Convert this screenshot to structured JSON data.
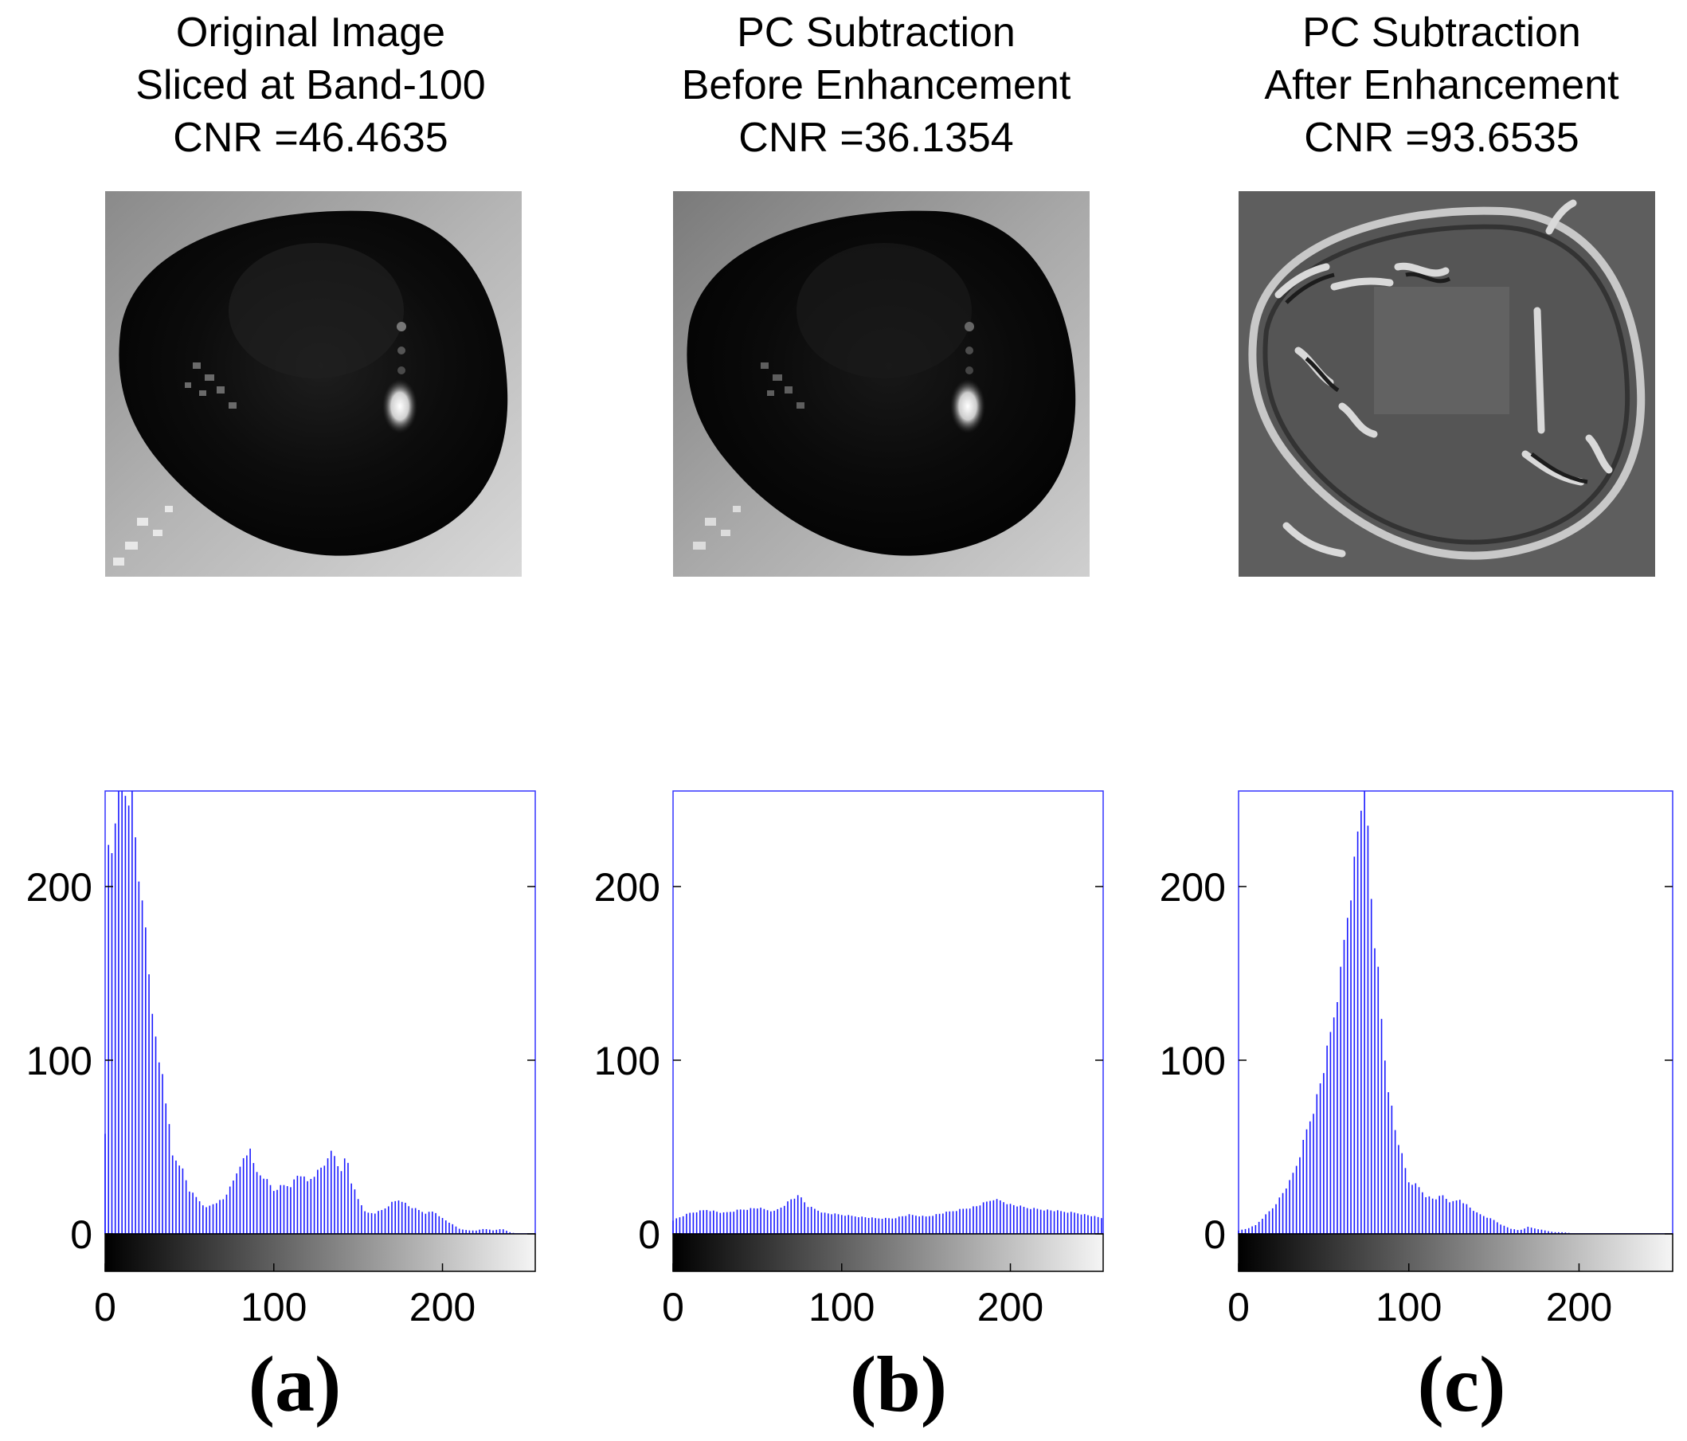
{
  "figure": {
    "panels": [
      {
        "id": "a",
        "title_lines": [
          "Original Image",
          "Sliced at Band-100",
          "CNR =46.4635"
        ],
        "label": "(a)"
      },
      {
        "id": "b",
        "title_lines": [
          "PC Subtraction",
          "Before Enhancement",
          "CNR =36.1354"
        ],
        "label": "(b)"
      },
      {
        "id": "c",
        "title_lines": [
          "PC Subtraction",
          "After Enhancement",
          "CNR =93.6535"
        ],
        "label": "(c)"
      }
    ]
  },
  "colors": {
    "bar": "#1a1aff",
    "axis": "#000000",
    "frame": "#3333ff"
  },
  "chart_data": [
    {
      "type": "bar",
      "title": "Original Image Sliced at Band-100 CNR =46.4635",
      "xlabel": "",
      "ylabel": "",
      "xlim": [
        0,
        255
      ],
      "ylim": [
        0,
        255
      ],
      "xticks": [
        0,
        100,
        200
      ],
      "yticks": [
        0,
        100,
        200
      ],
      "anchors": [
        [
          0,
          60
        ],
        [
          1,
          240
        ],
        [
          3,
          200
        ],
        [
          5,
          240
        ],
        [
          7,
          245
        ],
        [
          9,
          255
        ],
        [
          11,
          255
        ],
        [
          13,
          255
        ],
        [
          15,
          255
        ],
        [
          17,
          245
        ],
        [
          19,
          210
        ],
        [
          22,
          200
        ],
        [
          25,
          160
        ],
        [
          28,
          130
        ],
        [
          31,
          100
        ],
        [
          34,
          93
        ],
        [
          37,
          70
        ],
        [
          40,
          45
        ],
        [
          45,
          40
        ],
        [
          50,
          25
        ],
        [
          55,
          20
        ],
        [
          60,
          15
        ],
        [
          65,
          18
        ],
        [
          70,
          20
        ],
        [
          75,
          28
        ],
        [
          80,
          40
        ],
        [
          84,
          45
        ],
        [
          86,
          50
        ],
        [
          90,
          35
        ],
        [
          95,
          32
        ],
        [
          100,
          25
        ],
        [
          105,
          28
        ],
        [
          110,
          28
        ],
        [
          115,
          35
        ],
        [
          120,
          30
        ],
        [
          125,
          35
        ],
        [
          130,
          40
        ],
        [
          133,
          48
        ],
        [
          136,
          45
        ],
        [
          140,
          35
        ],
        [
          143,
          47
        ],
        [
          146,
          30
        ],
        [
          150,
          20
        ],
        [
          155,
          12
        ],
        [
          160,
          12
        ],
        [
          165,
          14
        ],
        [
          170,
          18
        ],
        [
          175,
          20
        ],
        [
          180,
          16
        ],
        [
          185,
          14
        ],
        [
          190,
          12
        ],
        [
          195,
          13
        ],
        [
          200,
          9
        ],
        [
          205,
          6
        ],
        [
          210,
          3
        ],
        [
          215,
          2
        ],
        [
          220,
          2
        ],
        [
          225,
          3
        ],
        [
          230,
          2
        ],
        [
          235,
          3
        ],
        [
          240,
          1
        ],
        [
          245,
          0
        ],
        [
          250,
          0
        ],
        [
          255,
          0
        ]
      ]
    },
    {
      "type": "bar",
      "title": "PC Subtraction Before Enhancement CNR =36.1354",
      "xlabel": "",
      "ylabel": "",
      "xlim": [
        0,
        255
      ],
      "ylim": [
        0,
        255
      ],
      "xticks": [
        0,
        100,
        200
      ],
      "yticks": [
        0,
        100,
        200
      ],
      "anchors": [
        [
          0,
          8
        ],
        [
          10,
          12
        ],
        [
          20,
          14
        ],
        [
          30,
          12
        ],
        [
          40,
          14
        ],
        [
          50,
          15
        ],
        [
          60,
          13
        ],
        [
          65,
          16
        ],
        [
          70,
          20
        ],
        [
          75,
          22
        ],
        [
          80,
          16
        ],
        [
          90,
          12
        ],
        [
          100,
          11
        ],
        [
          110,
          10
        ],
        [
          120,
          9
        ],
        [
          130,
          9
        ],
        [
          140,
          11
        ],
        [
          150,
          10
        ],
        [
          160,
          12
        ],
        [
          170,
          14
        ],
        [
          180,
          16
        ],
        [
          185,
          18
        ],
        [
          190,
          20
        ],
        [
          195,
          19
        ],
        [
          200,
          17
        ],
        [
          210,
          15
        ],
        [
          220,
          14
        ],
        [
          230,
          13
        ],
        [
          240,
          12
        ],
        [
          250,
          10
        ],
        [
          255,
          9
        ]
      ]
    },
    {
      "type": "bar",
      "title": "PC Subtraction After Enhancement CNR =93.6535",
      "xlabel": "",
      "ylabel": "",
      "xlim": [
        0,
        255
      ],
      "ylim": [
        0,
        255
      ],
      "xticks": [
        0,
        100,
        200
      ],
      "yticks": [
        0,
        100,
        200
      ],
      "anchors": [
        [
          0,
          2
        ],
        [
          5,
          3
        ],
        [
          10,
          5
        ],
        [
          15,
          10
        ],
        [
          20,
          15
        ],
        [
          25,
          22
        ],
        [
          30,
          30
        ],
        [
          35,
          42
        ],
        [
          40,
          60
        ],
        [
          45,
          75
        ],
        [
          50,
          95
        ],
        [
          55,
          120
        ],
        [
          60,
          150
        ],
        [
          63,
          178
        ],
        [
          66,
          200
        ],
        [
          69,
          220
        ],
        [
          71,
          245
        ],
        [
          73,
          255
        ],
        [
          75,
          255
        ],
        [
          77,
          210
        ],
        [
          79,
          180
        ],
        [
          82,
          150
        ],
        [
          85,
          110
        ],
        [
          88,
          85
        ],
        [
          92,
          60
        ],
        [
          96,
          45
        ],
        [
          100,
          30
        ],
        [
          105,
          28
        ],
        [
          110,
          22
        ],
        [
          115,
          20
        ],
        [
          120,
          22
        ],
        [
          125,
          18
        ],
        [
          130,
          20
        ],
        [
          135,
          16
        ],
        [
          140,
          12
        ],
        [
          145,
          10
        ],
        [
          150,
          8
        ],
        [
          155,
          5
        ],
        [
          160,
          3
        ],
        [
          165,
          2
        ],
        [
          170,
          4
        ],
        [
          175,
          3
        ],
        [
          180,
          2
        ],
        [
          185,
          1
        ],
        [
          190,
          1
        ],
        [
          200,
          0
        ],
        [
          255,
          0
        ]
      ]
    }
  ]
}
